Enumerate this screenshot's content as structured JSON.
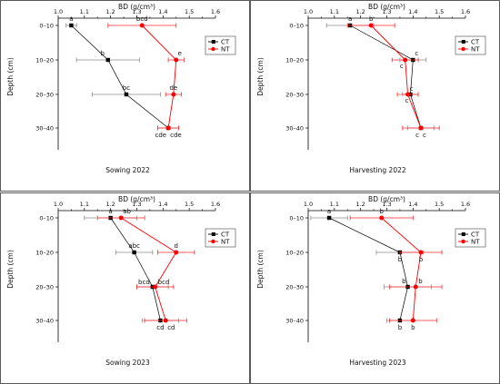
{
  "colors": {
    "CT": "#000000",
    "NT": "#ff0000",
    "errCT": "#8c8c8c",
    "errNT": "#ff2a2a"
  },
  "chart_data": [
    {
      "type": "line",
      "title": "Sowing 2022",
      "xlabel": "BD (g/cm³)",
      "ylabel": "Depth (cm)",
      "xlim": [
        1.0,
        1.6
      ],
      "xticks": [
        "1.0",
        "1.1",
        "1.2",
        "1.3",
        "1.4",
        "1.5",
        "1.6"
      ],
      "categories": [
        "0–10",
        "10–20",
        "20–30",
        "30–40"
      ],
      "legend": [
        "CT",
        "NT"
      ],
      "legend_position": "top-right",
      "series": [
        {
          "name": "CT",
          "values": [
            1.05,
            1.19,
            1.26,
            1.42
          ],
          "err": [
            0.02,
            0.12,
            0.13,
            0.04
          ],
          "labels": [
            "a",
            "b",
            "bc",
            "cde"
          ]
        },
        {
          "name": "NT",
          "values": [
            1.32,
            1.45,
            1.44,
            1.42
          ],
          "err": [
            0.13,
            0.03,
            0.03,
            0.04
          ],
          "labels": [
            "bcd",
            "e",
            "de",
            "cde"
          ]
        }
      ]
    },
    {
      "type": "line",
      "title": "Harvesting 2022",
      "xlabel": "BD (g/cm³)",
      "ylabel": "Depth (cm)",
      "xlim": [
        1.0,
        1.6
      ],
      "xticks": [
        "1.0",
        "1.1",
        "1.2",
        "1.3",
        "1.4",
        "1.5",
        "1.6"
      ],
      "categories": [
        "0–10",
        "10–20",
        "20–30",
        "30–40"
      ],
      "legend": [
        "CT",
        "NT"
      ],
      "legend_position": "top-right",
      "series": [
        {
          "name": "CT",
          "values": [
            1.16,
            1.4,
            1.39,
            1.43
          ],
          "err": [
            0.09,
            0.05,
            0.03,
            0.05
          ],
          "labels": [
            "a",
            "c",
            "c",
            "c"
          ]
        },
        {
          "name": "NT",
          "values": [
            1.24,
            1.37,
            1.38,
            1.43
          ],
          "err": [
            0.09,
            0.05,
            0.04,
            0.07
          ],
          "labels": [
            "b",
            "c",
            "c",
            "c"
          ]
        }
      ]
    },
    {
      "type": "line",
      "title": "Sowing 2023",
      "xlabel": "BD (g/cm³)",
      "ylabel": "Depth (cm)",
      "xlim": [
        1.0,
        1.6
      ],
      "xticks": [
        "1.0",
        "1.1",
        "1.2",
        "1.3",
        "1.4",
        "1.5",
        "1.6"
      ],
      "categories": [
        "0–10",
        "10–20",
        "20–30",
        "30–40"
      ],
      "legend": [
        "CT",
        "NT"
      ],
      "legend_position": "top-right",
      "series": [
        {
          "name": "CT",
          "values": [
            1.2,
            1.29,
            1.36,
            1.39
          ],
          "err": [
            0.1,
            0.07,
            0.06,
            0.07
          ],
          "labels": [
            "a",
            "abc",
            "bcd",
            "cd"
          ]
        },
        {
          "name": "NT",
          "values": [
            1.24,
            1.45,
            1.37,
            1.41
          ],
          "err": [
            0.09,
            0.07,
            0.07,
            0.08
          ],
          "labels": [
            "ab",
            "d",
            "bcd",
            "cd"
          ]
        }
      ]
    },
    {
      "type": "line",
      "title": "Harvesting 2023",
      "xlabel": "BD (g/cm³)",
      "ylabel": "Depth (cm)",
      "xlim": [
        1.0,
        1.6
      ],
      "xticks": [
        "1.0",
        "1.1",
        "1.2",
        "1.3",
        "1.4",
        "1.5",
        "1.6"
      ],
      "categories": [
        "0–10",
        "10–20",
        "20–30",
        "30–40"
      ],
      "legend": [
        "CT",
        "NT"
      ],
      "legend_position": "top-right",
      "series": [
        {
          "name": "CT",
          "values": [
            1.08,
            1.35,
            1.38,
            1.35
          ],
          "err": [
            0.07,
            0.09,
            0.09,
            0.05
          ],
          "labels": [
            "a",
            "b",
            "b",
            "b"
          ]
        },
        {
          "name": "NT",
          "values": [
            1.28,
            1.43,
            1.41,
            1.4
          ],
          "err": [
            0.12,
            0.08,
            0.1,
            0.09
          ],
          "labels": [
            "b",
            "b",
            "b",
            "b"
          ]
        }
      ]
    }
  ]
}
